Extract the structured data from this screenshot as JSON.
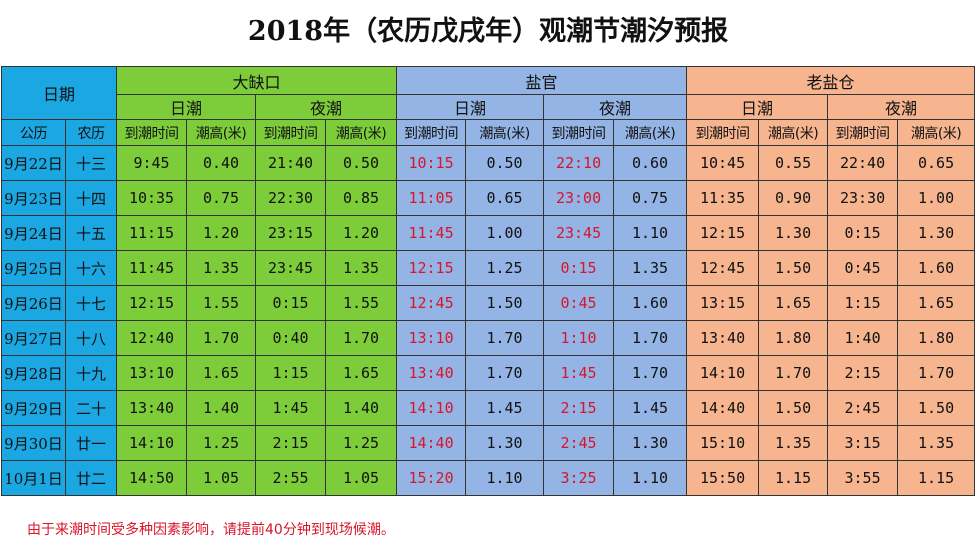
{
  "title": "2018年（农历戊戌年）观潮节潮汐预报",
  "headers": {
    "date": "日期",
    "solar": "公历",
    "lunar": "农历",
    "day_tide": "日潮",
    "night_tide": "夜潮",
    "arrive_time": "到潮时间",
    "tide_height": "潮高(米)"
  },
  "locations": [
    "大缺口",
    "盐官",
    "老盐仓"
  ],
  "colors": {
    "date": "#1aa7e2",
    "daquekou": "#7dcc3a",
    "yanguan": "#93b4e4",
    "laoyancang": "#f6b48f",
    "highlight_text": "#d8152a"
  },
  "rows": [
    {
      "solar": "9月22日",
      "lunar": "十三",
      "d1t": "9:45",
      "d1h": "0.40",
      "n1t": "21:40",
      "n1h": "0.50",
      "d2t": "10:15",
      "d2h": "0.50",
      "n2t": "22:10",
      "n2h": "0.60",
      "d3t": "10:45",
      "d3h": "0.55",
      "n3t": "22:40",
      "n3h": "0.65"
    },
    {
      "solar": "9月23日",
      "lunar": "十四",
      "d1t": "10:35",
      "d1h": "0.75",
      "n1t": "22:30",
      "n1h": "0.85",
      "d2t": "11:05",
      "d2h": "0.65",
      "n2t": "23:00",
      "n2h": "0.75",
      "d3t": "11:35",
      "d3h": "0.90",
      "n3t": "23:30",
      "n3h": "1.00"
    },
    {
      "solar": "9月24日",
      "lunar": "十五",
      "d1t": "11:15",
      "d1h": "1.20",
      "n1t": "23:15",
      "n1h": "1.20",
      "d2t": "11:45",
      "d2h": "1.00",
      "n2t": "23:45",
      "n2h": "1.10",
      "d3t": "12:15",
      "d3h": "1.30",
      "n3t": "0:15",
      "n3h": "1.30"
    },
    {
      "solar": "9月25日",
      "lunar": "十六",
      "d1t": "11:45",
      "d1h": "1.35",
      "n1t": "23:45",
      "n1h": "1.35",
      "d2t": "12:15",
      "d2h": "1.25",
      "n2t": "0:15",
      "n2h": "1.35",
      "d3t": "12:45",
      "d3h": "1.50",
      "n3t": "0:45",
      "n3h": "1.60"
    },
    {
      "solar": "9月26日",
      "lunar": "十七",
      "d1t": "12:15",
      "d1h": "1.55",
      "n1t": "0:15",
      "n1h": "1.55",
      "d2t": "12:45",
      "d2h": "1.50",
      "n2t": "0:45",
      "n2h": "1.60",
      "d3t": "13:15",
      "d3h": "1.65",
      "n3t": "1:15",
      "n3h": "1.65"
    },
    {
      "solar": "9月27日",
      "lunar": "十八",
      "d1t": "12:40",
      "d1h": "1.70",
      "n1t": "0:40",
      "n1h": "1.70",
      "d2t": "13:10",
      "d2h": "1.70",
      "n2t": "1:10",
      "n2h": "1.70",
      "d3t": "13:40",
      "d3h": "1.80",
      "n3t": "1:40",
      "n3h": "1.80"
    },
    {
      "solar": "9月28日",
      "lunar": "十九",
      "d1t": "13:10",
      "d1h": "1.65",
      "n1t": "1:15",
      "n1h": "1.65",
      "d2t": "13:40",
      "d2h": "1.70",
      "n2t": "1:45",
      "n2h": "1.70",
      "d3t": "14:10",
      "d3h": "1.70",
      "n3t": "2:15",
      "n3h": "1.70"
    },
    {
      "solar": "9月29日",
      "lunar": "二十",
      "d1t": "13:40",
      "d1h": "1.40",
      "n1t": "1:45",
      "n1h": "1.40",
      "d2t": "14:10",
      "d2h": "1.45",
      "n2t": "2:15",
      "n2h": "1.45",
      "d3t": "14:40",
      "d3h": "1.50",
      "n3t": "2:45",
      "n3h": "1.50"
    },
    {
      "solar": "9月30日",
      "lunar": "廿一",
      "d1t": "14:10",
      "d1h": "1.25",
      "n1t": "2:15",
      "n1h": "1.25",
      "d2t": "14:40",
      "d2h": "1.30",
      "n2t": "2:45",
      "n2h": "1.30",
      "d3t": "15:10",
      "d3h": "1.35",
      "n3t": "3:15",
      "n3h": "1.35"
    },
    {
      "solar": "10月1日",
      "lunar": "廿二",
      "d1t": "14:50",
      "d1h": "1.05",
      "n1t": "2:55",
      "n1h": "1.05",
      "d2t": "15:20",
      "d2h": "1.10",
      "n2t": "3:25",
      "n2h": "1.10",
      "d3t": "15:50",
      "d3h": "1.15",
      "n3t": "3:55",
      "n3h": "1.15"
    }
  ],
  "note": "由于来潮时间受多种因素影响，请提前40分钟到现场候潮。"
}
